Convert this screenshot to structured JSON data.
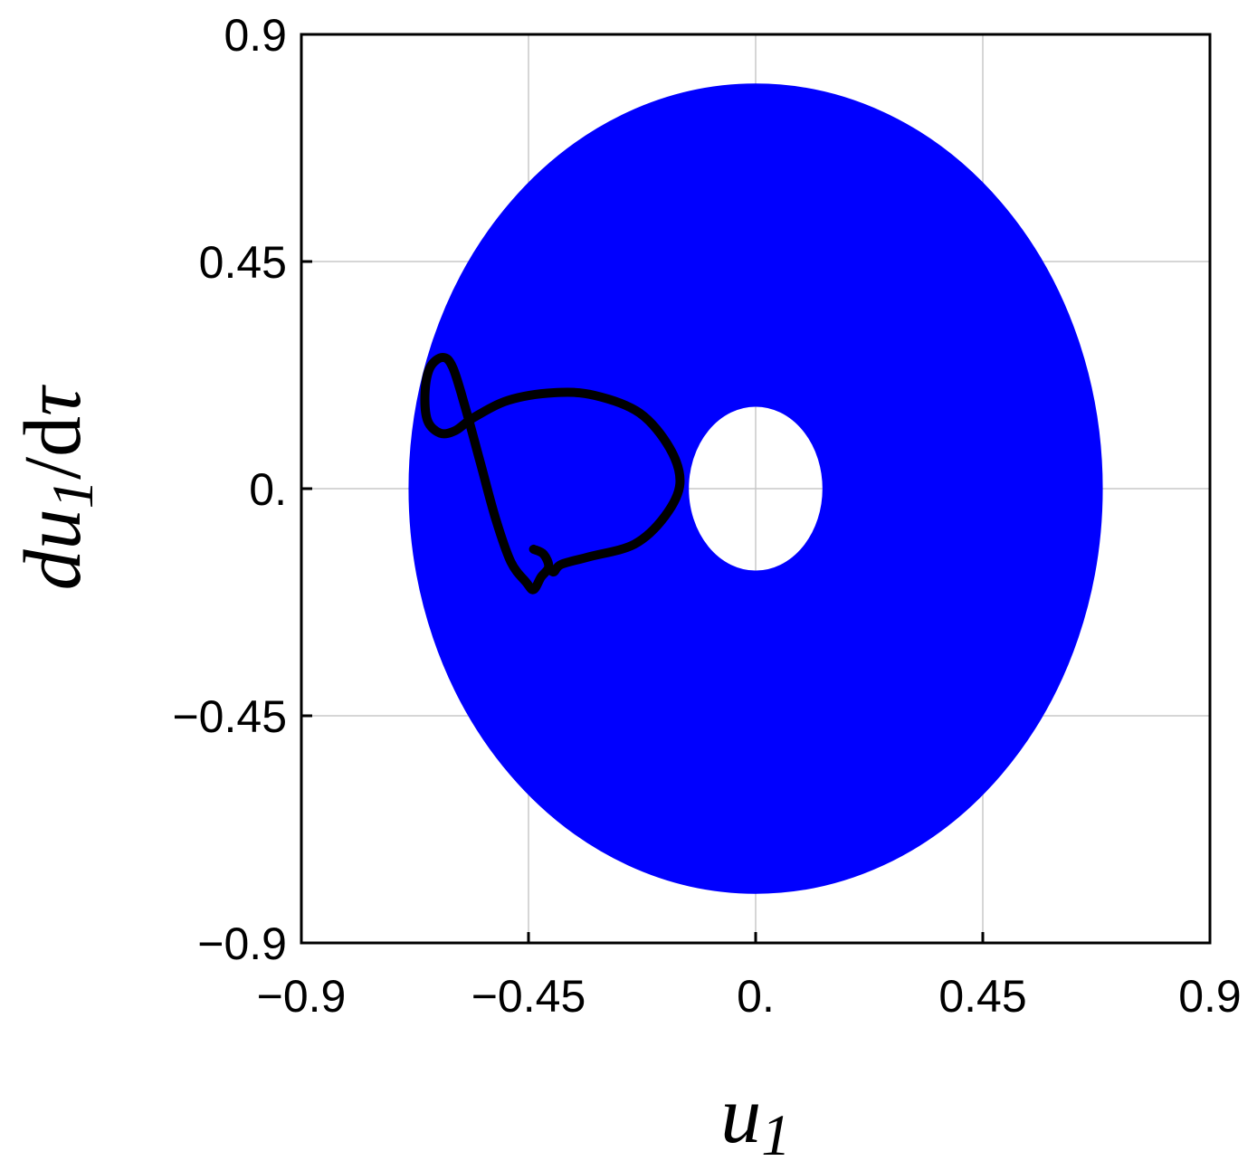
{
  "chart_data": {
    "type": "scatter",
    "title": "",
    "xlabel": {
      "var": "u",
      "sub": "1"
    },
    "ylabel": {
      "prefix": "du",
      "sub": "1",
      "mid": "/",
      "d": "d",
      "tau": "τ"
    },
    "xlim": [
      -0.9,
      0.9
    ],
    "ylim": [
      -0.9,
      0.9
    ],
    "x_ticks": [
      -0.9,
      -0.45,
      0.0,
      0.45,
      0.9
    ],
    "y_ticks": [
      -0.9,
      -0.45,
      0.0,
      0.45,
      0.9
    ],
    "x_tick_labels": [
      "−0.9",
      "−0.45",
      "0.",
      "0.45",
      "0.9"
    ],
    "y_tick_labels": [
      "−0.9",
      "−0.45",
      "0.",
      "0.45",
      "0.9"
    ],
    "grid": true,
    "series": [
      {
        "kind": "filled-annulus",
        "color": "#0000ff",
        "outer": {
          "cx": 0.0,
          "cy": 0.0,
          "rx": 0.685,
          "ry": 0.8
        },
        "inner": {
          "cx": 0.0,
          "cy": 0.0,
          "rx": 0.135,
          "ry": 0.165
        }
      },
      {
        "kind": "trajectory",
        "color": "#000000",
        "points": [
          [
            -0.44,
            -0.12
          ],
          [
            -0.42,
            -0.13
          ],
          [
            -0.41,
            -0.155
          ],
          [
            -0.425,
            -0.175
          ],
          [
            -0.44,
            -0.2
          ],
          [
            -0.455,
            -0.185
          ],
          [
            -0.485,
            -0.145
          ],
          [
            -0.515,
            -0.06
          ],
          [
            -0.545,
            0.05
          ],
          [
            -0.575,
            0.16
          ],
          [
            -0.6,
            0.24
          ],
          [
            -0.62,
            0.26
          ],
          [
            -0.645,
            0.24
          ],
          [
            -0.655,
            0.19
          ],
          [
            -0.65,
            0.135
          ],
          [
            -0.625,
            0.11
          ],
          [
            -0.595,
            0.115
          ],
          [
            -0.56,
            0.14
          ],
          [
            -0.49,
            0.175
          ],
          [
            -0.4,
            0.19
          ],
          [
            -0.32,
            0.185
          ],
          [
            -0.23,
            0.15
          ],
          [
            -0.17,
            0.08
          ],
          [
            -0.15,
            0.01
          ],
          [
            -0.18,
            -0.055
          ],
          [
            -0.24,
            -0.11
          ],
          [
            -0.33,
            -0.135
          ],
          [
            -0.385,
            -0.15
          ],
          [
            -0.4,
            -0.165
          ],
          [
            -0.41,
            -0.155
          ]
        ]
      }
    ]
  }
}
